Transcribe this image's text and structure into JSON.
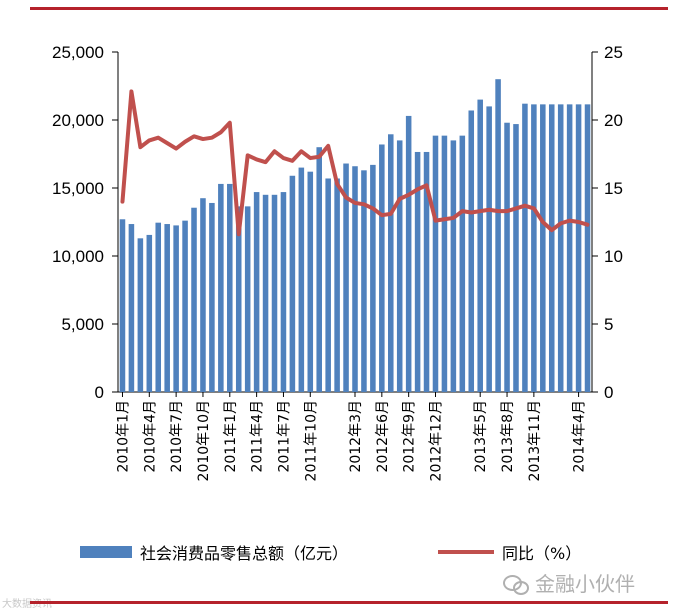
{
  "watermark": {
    "text": "金融小伙伴",
    "icon": "wechat-icon"
  },
  "credit": "大数据资讯",
  "colors": {
    "bar": "#4f81bd",
    "line": "#c0504d",
    "rule": "#b5222b"
  },
  "chart_data": {
    "type": "bar",
    "title": "",
    "legend_position": "bottom",
    "grid": false,
    "categories": [
      "2010年1月",
      "2010年2月",
      "2010年3月",
      "2010年4月",
      "2010年5月",
      "2010年6月",
      "2010年7月",
      "2010年8月",
      "2010年9月",
      "2010年10月",
      "2010年11月",
      "2010年12月",
      "2011年1月",
      "2011年2月",
      "2011年3月",
      "2011年4月",
      "2011年5月",
      "2011年6月",
      "2011年7月",
      "2011年8月",
      "2011年9月",
      "2011年10月",
      "2011年11月",
      "2011年12月",
      "2012年1月",
      "2012年2月",
      "2012年3月",
      "2012年4月",
      "2012年5月",
      "2012年6月",
      "2012年7月",
      "2012年8月",
      "2012年9月",
      "2012年10月",
      "2012年11月",
      "2012年12月",
      "2013年1月",
      "2013年2月",
      "2013年3月",
      "2013年4月",
      "2013年5月",
      "2013年6月",
      "2013年7月",
      "2013年8月",
      "2013年9月",
      "2013年10月",
      "2013年11月",
      "2013年12月",
      "2014年1月",
      "2014年2月",
      "2014年3月",
      "2014年4月",
      "2014年5月"
    ],
    "tick_labels": [
      "2010年1月",
      "2010年4月",
      "2010年7月",
      "2010年10月",
      "2011年1月",
      "2011年4月",
      "2011年7月",
      "2011年10月",
      "2012年3月",
      "2012年6月",
      "2012年9月",
      "2012年12月",
      "2013年5月",
      "2013年8月",
      "2013年11月",
      "2014年4月"
    ],
    "tick_indices": [
      0,
      3,
      6,
      9,
      12,
      15,
      18,
      21,
      26,
      29,
      32,
      35,
      40,
      43,
      46,
      51
    ],
    "y_left": {
      "ylim": [
        0,
        25000
      ],
      "ticks": [
        "0",
        "5,000",
        "10,000",
        "15,000",
        "20,000",
        "25,000"
      ]
    },
    "y_right": {
      "ylim": [
        0,
        25
      ],
      "ticks": [
        "0",
        "5",
        "10",
        "15",
        "20",
        "25"
      ]
    },
    "series": [
      {
        "name": "社会消费品零售总额（亿元）",
        "type": "bar",
        "axis": "left",
        "values": [
          12700,
          12350,
          11300,
          11550,
          12450,
          12350,
          12250,
          12600,
          13550,
          14250,
          13900,
          15300,
          15300,
          13650,
          13650,
          14700,
          14500,
          14500,
          14700,
          15900,
          16500,
          16200,
          18000,
          15700,
          15700,
          16800,
          16600,
          16300,
          16700,
          18200,
          18950,
          18500,
          20300,
          17650,
          17650,
          18850,
          18850,
          18500,
          18850,
          20700,
          21500,
          21000,
          23000,
          19800,
          19700,
          21200,
          21150,
          21150,
          21150,
          21150,
          21150,
          21150,
          21150
        ]
      },
      {
        "name": "同比（%）",
        "type": "line",
        "axis": "right",
        "values": [
          14.0,
          22.1,
          18.0,
          18.5,
          18.7,
          18.3,
          17.9,
          18.4,
          18.8,
          18.6,
          18.7,
          19.1,
          19.8,
          11.6,
          17.4,
          17.1,
          16.9,
          17.7,
          17.2,
          17.0,
          17.7,
          17.2,
          17.3,
          18.1,
          15.3,
          14.3,
          13.9,
          13.8,
          13.5,
          13.0,
          13.1,
          14.2,
          14.5,
          14.9,
          15.2,
          12.6,
          12.7,
          12.8,
          13.3,
          13.2,
          13.3,
          13.4,
          13.3,
          13.3,
          13.5,
          13.7,
          13.5,
          12.5,
          11.9,
          12.4,
          12.6,
          12.5,
          12.3
        ]
      }
    ]
  }
}
